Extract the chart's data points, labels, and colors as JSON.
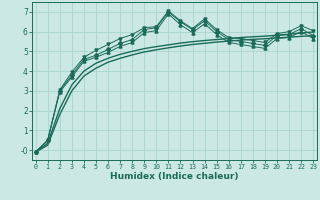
{
  "title": "",
  "xlabel": "Humidex (Indice chaleur)",
  "bg_color": "#cce8e4",
  "grid_color": "#aad4ce",
  "line_color": "#1a6b5a",
  "x_values": [
    0,
    1,
    2,
    3,
    4,
    5,
    6,
    7,
    8,
    9,
    10,
    11,
    12,
    13,
    14,
    15,
    16,
    17,
    18,
    19,
    20,
    21,
    22,
    23
  ],
  "series_main": [
    -0.1,
    0.5,
    3.0,
    3.8,
    4.6,
    4.8,
    5.1,
    5.4,
    5.6,
    6.1,
    6.2,
    7.0,
    6.5,
    6.1,
    6.55,
    6.0,
    5.6,
    5.5,
    5.4,
    5.3,
    5.8,
    5.85,
    6.15,
    5.8
  ],
  "series_upper": [
    -0.1,
    0.5,
    3.05,
    3.95,
    4.7,
    5.05,
    5.35,
    5.65,
    5.85,
    6.2,
    6.25,
    7.05,
    6.55,
    6.15,
    6.65,
    6.1,
    5.7,
    5.65,
    5.55,
    5.45,
    5.9,
    6.0,
    6.3,
    6.05
  ],
  "series_lower": [
    -0.1,
    0.5,
    2.95,
    3.7,
    4.5,
    4.7,
    4.95,
    5.25,
    5.45,
    5.95,
    6.05,
    6.9,
    6.35,
    5.95,
    6.4,
    5.85,
    5.45,
    5.35,
    5.25,
    5.15,
    5.65,
    5.7,
    6.0,
    5.65
  ],
  "series_smooth1": [
    -0.1,
    0.25,
    1.8,
    3.0,
    3.75,
    4.15,
    4.45,
    4.65,
    4.82,
    4.97,
    5.08,
    5.18,
    5.27,
    5.35,
    5.41,
    5.47,
    5.52,
    5.57,
    5.61,
    5.64,
    5.68,
    5.72,
    5.76,
    5.8
  ],
  "series_smooth2": [
    -0.1,
    0.35,
    2.1,
    3.3,
    4.0,
    4.4,
    4.65,
    4.85,
    5.0,
    5.14,
    5.24,
    5.33,
    5.42,
    5.49,
    5.55,
    5.6,
    5.65,
    5.7,
    5.74,
    5.77,
    5.82,
    5.87,
    5.93,
    5.98
  ],
  "ylim": [
    -0.5,
    7.5
  ],
  "xlim": [
    -0.3,
    23.3
  ],
  "yticks": [
    0,
    1,
    2,
    3,
    4,
    5,
    6,
    7
  ],
  "ytick_labels": [
    "-0",
    "1",
    "2",
    "3",
    "4",
    "5",
    "6",
    "7"
  ]
}
